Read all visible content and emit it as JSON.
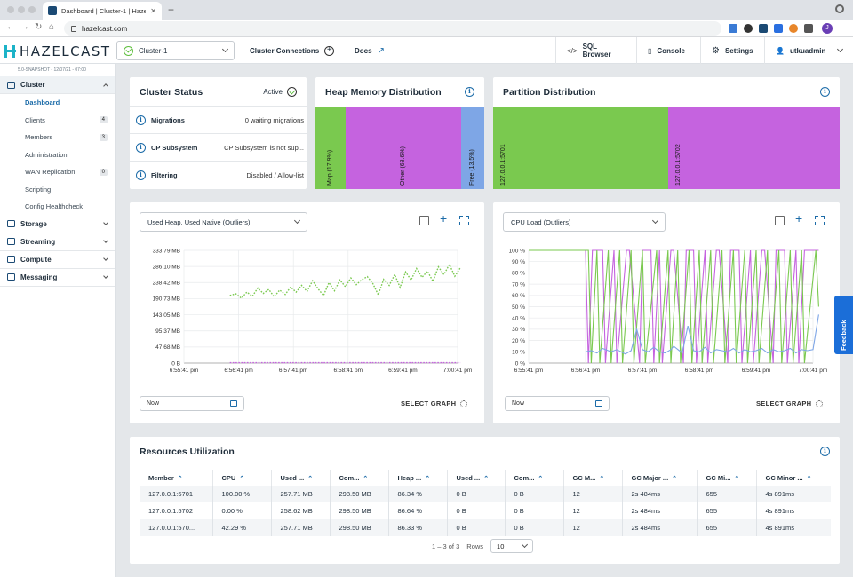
{
  "browser": {
    "tab_title": "Dashboard | Cluster-1 | Hazelc",
    "url": "hazelcast.com",
    "profile_initial": "J"
  },
  "app": {
    "logo": "HAZELCAST",
    "version": "5.0-SNAPSHOT - 12/07/21 - 07:00",
    "cluster_selected": "Cluster-1",
    "nav": {
      "cluster_connections": "Cluster Connections",
      "docs": "Docs"
    },
    "topright": {
      "sql_browser": "SQL Browser",
      "console": "Console",
      "settings": "Settings",
      "user": "utkuadmin"
    }
  },
  "sidebar": {
    "cluster": "Cluster",
    "cluster_items": [
      {
        "label": "Dashboard",
        "badge": ""
      },
      {
        "label": "Clients",
        "badge": "4"
      },
      {
        "label": "Members",
        "badge": "3"
      },
      {
        "label": "Administration",
        "badge": ""
      },
      {
        "label": "WAN Replication",
        "badge": "0"
      },
      {
        "label": "Scripting",
        "badge": ""
      },
      {
        "label": "Config Healthcheck",
        "badge": ""
      }
    ],
    "sections": [
      "Storage",
      "Streaming",
      "Compute",
      "Messaging"
    ]
  },
  "cluster_status": {
    "title": "Cluster Status",
    "state": "Active",
    "rows": [
      {
        "label": "Migrations",
        "value": "0 waiting migrations"
      },
      {
        "label": "CP Subsystem",
        "value": "CP Subsystem is not sup..."
      },
      {
        "label": "Filtering",
        "value": "Disabled / Allow-list"
      }
    ]
  },
  "heap": {
    "title": "Heap Memory Distribution",
    "segments": [
      {
        "label": "Map (17.9%)",
        "pct": 17.9,
        "color": "#7ac94f"
      },
      {
        "label": "Other (68.6%)",
        "pct": 68.6,
        "color": "#c563df"
      },
      {
        "label": "Free (13.5%)",
        "pct": 13.5,
        "color": "#7ea6e6"
      }
    ]
  },
  "partition": {
    "title": "Partition Distribution",
    "segments": [
      {
        "label": "127.0.0.1:5701",
        "pct": 50.5,
        "color": "#7ac94f"
      },
      {
        "label": "127.0.0.1:5702",
        "pct": 49.5,
        "color": "#c563df"
      }
    ]
  },
  "graph_left": {
    "select": "Used Heap, Used Native (Outliers)",
    "now": "Now",
    "select_graph": "SELECT GRAPH"
  },
  "graph_right": {
    "select": "CPU Load (Outliers)",
    "now": "Now",
    "select_graph": "SELECT GRAPH"
  },
  "chart_data": [
    {
      "type": "line",
      "y_tick_labels": [
        "0 B",
        "47.68 MB",
        "95.37 MB",
        "143.05 MB",
        "190.73 MB",
        "238.42 MB",
        "286.10 MB",
        "333.79 MB"
      ],
      "x_tick_labels": [
        "6:55:41 pm",
        "6:56:41 pm",
        "6:57:41 pm",
        "6:58:41 pm",
        "6:59:41 pm",
        "7:00:41 pm"
      ],
      "ylim_mb": [
        0,
        333.79
      ],
      "series": [
        {
          "color": "#7ac94f",
          "dashed": true,
          "x": [
            0.84,
            0.95,
            1.05,
            1.15,
            1.25,
            1.35,
            1.45,
            1.55,
            1.65,
            1.75,
            1.85,
            1.95,
            2.05,
            2.15,
            2.25,
            2.35,
            2.45,
            2.55,
            2.65,
            2.75,
            2.85,
            2.95,
            3.05,
            3.15,
            3.25,
            3.35,
            3.45,
            3.55,
            3.65,
            3.75,
            3.85,
            3.95,
            4.05,
            4.15,
            4.25,
            4.35,
            4.45,
            4.55,
            4.65,
            4.75,
            4.85,
            4.95,
            5.05
          ],
          "y": [
            200,
            205,
            192,
            210,
            198,
            222,
            206,
            218,
            196,
            216,
            203,
            225,
            210,
            230,
            212,
            244,
            220,
            200,
            238,
            214,
            246,
            226,
            252,
            232,
            247,
            256,
            236,
            202,
            248,
            230,
            262,
            224,
            270,
            246,
            280,
            254,
            272,
            242,
            285,
            262,
            292,
            257,
            282
          ]
        },
        {
          "color": "#c563df",
          "dashed": true,
          "x": [
            0.84,
            1.2,
            1.6,
            2.0,
            2.4,
            2.8,
            3.2,
            3.6,
            4.0,
            4.4,
            4.8,
            5.05
          ],
          "y": [
            1,
            1,
            1,
            1,
            1,
            1,
            1,
            1,
            1,
            1,
            1,
            1
          ]
        }
      ]
    },
    {
      "type": "line",
      "y_tick_labels": [
        "0 %",
        "10 %",
        "20 %",
        "30 %",
        "40 %",
        "50 %",
        "60 %",
        "70 %",
        "80 %",
        "90 %",
        "100 %"
      ],
      "x_tick_labels": [
        "6:55:41 pm",
        "6:56:41 pm",
        "6:57:41 pm",
        "6:58:41 pm",
        "6:59:41 pm",
        "7:00:41 pm"
      ],
      "ylim": [
        0,
        100
      ],
      "series": [
        {
          "color": "#c563df",
          "x": [
            0.0,
            1.0,
            1.05,
            1.12,
            1.3,
            1.35,
            1.5,
            1.55,
            1.72,
            1.77,
            1.95,
            2.0,
            2.15,
            2.2,
            2.3,
            2.35,
            2.5,
            2.55,
            2.72,
            2.77,
            2.9,
            2.95,
            3.1,
            3.15,
            3.3,
            3.35,
            3.5,
            3.55,
            3.7,
            3.75,
            3.9,
            3.95,
            4.1,
            4.15,
            4.3,
            4.35,
            4.5,
            4.55,
            4.7,
            4.75,
            4.85,
            5.1
          ],
          "y": [
            100,
            100,
            0,
            100,
            100,
            0,
            100,
            0,
            100,
            100,
            0,
            100,
            100,
            0,
            100,
            0,
            100,
            100,
            0,
            100,
            100,
            0,
            100,
            0,
            100,
            100,
            0,
            100,
            100,
            0,
            100,
            0,
            100,
            100,
            0,
            100,
            100,
            0,
            100,
            0,
            100,
            100
          ]
        },
        {
          "color": "#7ac94f",
          "x": [
            0.0,
            1.05,
            1.1,
            1.2,
            1.25,
            1.4,
            1.45,
            1.6,
            1.65,
            1.8,
            1.85,
            2.0,
            2.05,
            2.25,
            2.3,
            2.45,
            2.5,
            2.62,
            2.67,
            2.82,
            2.87,
            3.0,
            3.05,
            3.2,
            3.25,
            3.4,
            3.45,
            3.6,
            3.65,
            3.8,
            3.85,
            4.0,
            4.05,
            4.2,
            4.25,
            4.4,
            4.45,
            4.6,
            4.65,
            4.8,
            4.85,
            5.05,
            5.1
          ],
          "y": [
            100,
            100,
            0,
            100,
            0,
            100,
            0,
            100,
            0,
            100,
            0,
            100,
            0,
            100,
            0,
            100,
            0,
            100,
            0,
            100,
            0,
            100,
            0,
            100,
            0,
            100,
            0,
            100,
            0,
            100,
            0,
            100,
            0,
            100,
            0,
            100,
            0,
            100,
            0,
            100,
            0,
            100,
            50
          ]
        },
        {
          "color": "#7ea6e6",
          "x": [
            1.0,
            1.1,
            1.2,
            1.3,
            1.45,
            1.55,
            1.7,
            1.8,
            1.9,
            2.0,
            2.1,
            2.2,
            2.3,
            2.4,
            2.5,
            2.55,
            2.7,
            2.8,
            2.9,
            3.0,
            3.1,
            3.2,
            3.3,
            3.4,
            3.5,
            3.6,
            3.7,
            3.8,
            3.9,
            4.0,
            4.1,
            4.2,
            4.3,
            4.4,
            4.5,
            4.6,
            4.7,
            4.8,
            4.9,
            5.0,
            5.1
          ],
          "y": [
            10,
            11,
            9,
            13,
            10,
            12,
            8,
            11,
            30,
            12,
            10,
            14,
            10,
            9,
            12,
            15,
            9,
            33,
            11,
            10,
            14,
            9,
            12,
            11,
            10,
            13,
            9,
            12,
            10,
            11,
            13,
            9,
            12,
            10,
            11,
            13,
            9,
            12,
            11,
            12,
            43
          ]
        }
      ]
    }
  ],
  "resources": {
    "title": "Resources Utilization",
    "columns": [
      "Member",
      "CPU",
      "Used ...",
      "Com...",
      "Heap ...",
      "Used ...",
      "Com...",
      "GC M...",
      "GC Major ...",
      "GC Mi...",
      "GC Minor ..."
    ],
    "rows": [
      [
        "127.0.0.1:5701",
        "100.00 %",
        "257.71 MB",
        "298.50 MB",
        "86.34 %",
        "0 B",
        "0 B",
        "12",
        "2s 484ms",
        "655",
        "4s 891ms"
      ],
      [
        "127.0.0.1:5702",
        "0.00 %",
        "258.62 MB",
        "298.50 MB",
        "86.64 %",
        "0 B",
        "0 B",
        "12",
        "2s 484ms",
        "655",
        "4s 891ms"
      ],
      [
        "127.0.0.1:570...",
        "42.29 %",
        "257.71 MB",
        "298.50 MB",
        "86.33 %",
        "0 B",
        "0 B",
        "12",
        "2s 484ms",
        "655",
        "4s 891ms"
      ]
    ],
    "pager": "1 – 3 of 3",
    "rows_label": "Rows",
    "rows_value": "10"
  },
  "feedback": "Feedback"
}
